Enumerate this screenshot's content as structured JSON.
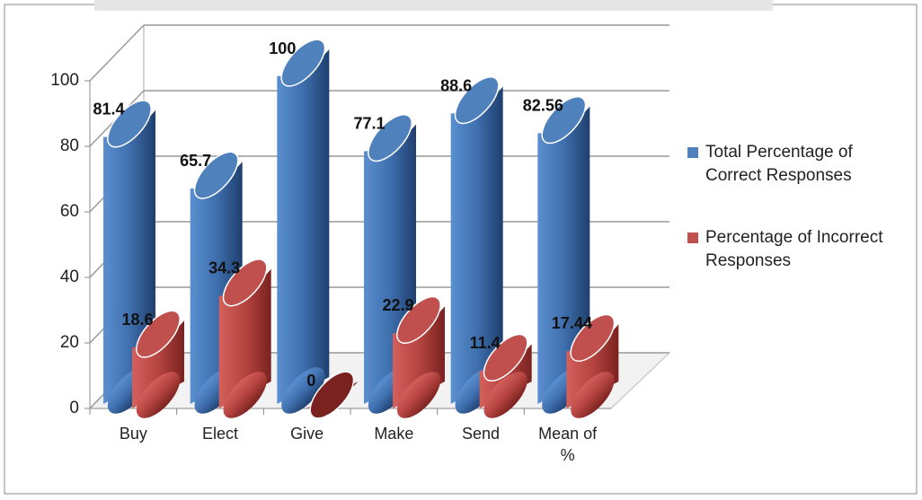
{
  "chart_data": {
    "type": "bar3d",
    "categories": [
      "Buy",
      "Elect",
      "Give",
      "Make",
      "Send",
      "Mean of %"
    ],
    "series": [
      {
        "name": "Total Percentage of Correct Responses",
        "color": "#4f81bd",
        "values": [
          81.4,
          65.7,
          100,
          77.1,
          88.6,
          82.56
        ]
      },
      {
        "name": "Percentage of Incorrect Responses",
        "color": "#c0504d",
        "values": [
          18.6,
          34.3,
          0,
          22.9,
          11.4,
          17.44
        ]
      }
    ],
    "ylim": [
      0,
      100
    ],
    "yticks": [
      0,
      20,
      40,
      60,
      80,
      100
    ],
    "grid": true,
    "legend": "right"
  }
}
